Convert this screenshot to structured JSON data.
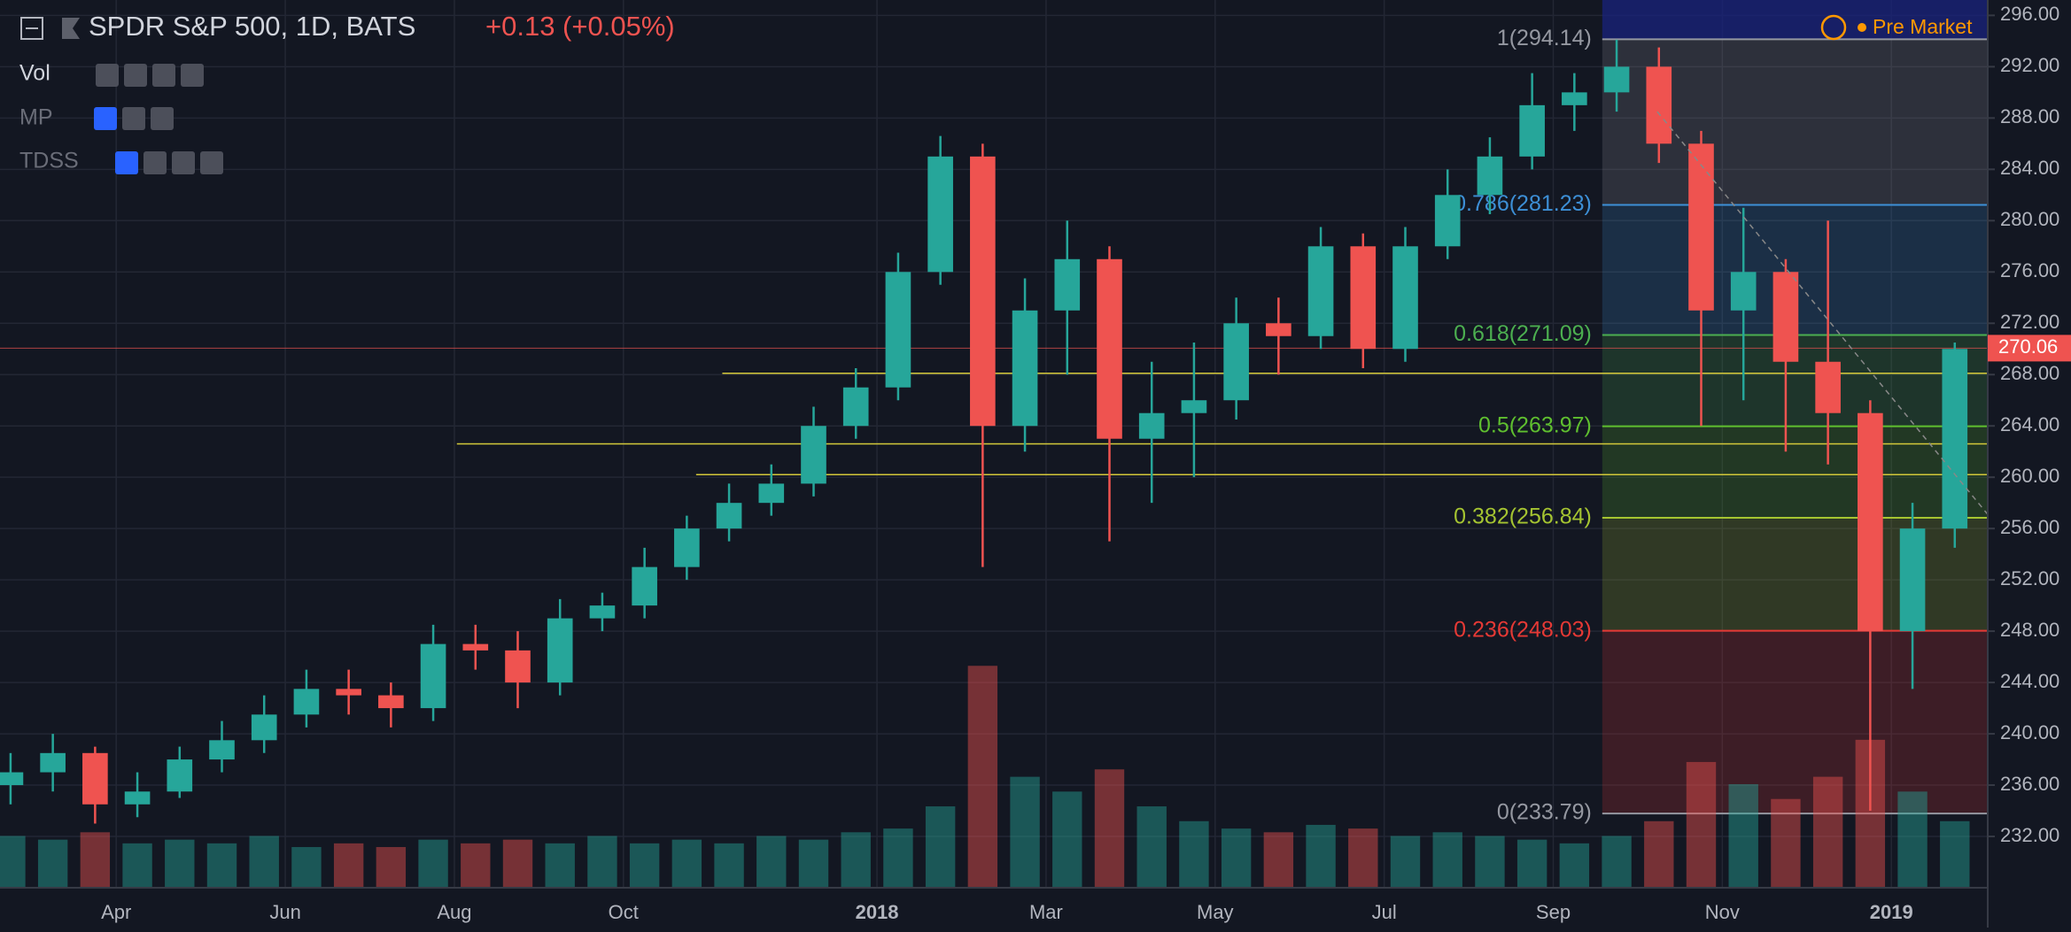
{
  "chart_data": {
    "type": "candlestick",
    "title": "SPDR S&P 500, 1D, BATS",
    "change": "+0.13 (+0.05%)",
    "indicators": [
      "Vol",
      "MP",
      "TDSS"
    ],
    "status": "Pre Market",
    "up_color": "#26a69a",
    "down_color": "#ef5350",
    "grid": true,
    "x": [
      1.75,
      2.25,
      2.75,
      3.25,
      3.75,
      4.25,
      4.75,
      5.25,
      5.75,
      6.25,
      6.75,
      7.25,
      7.75,
      8.25,
      8.75,
      9.25,
      9.75,
      10.25,
      10.75,
      11.25,
      11.75,
      12.25,
      12.75,
      13.25,
      13.75,
      14.25,
      14.75,
      15.25,
      15.75,
      16.25,
      16.75,
      17.25,
      17.75,
      18.25,
      18.75,
      19.25,
      19.75,
      20.25,
      20.75,
      21.25,
      21.75,
      22.25,
      22.75,
      23.25,
      23.75,
      24.25,
      24.75
    ],
    "open": [
      236,
      237,
      238.5,
      234.5,
      235.5,
      238,
      239.5,
      241.5,
      243.5,
      243,
      242,
      247,
      246.5,
      244,
      249,
      250,
      253,
      256,
      258,
      259.5,
      264,
      267,
      276,
      285,
      264,
      273,
      277,
      263,
      265,
      266,
      272,
      271,
      278,
      270,
      278,
      282,
      285,
      289,
      290,
      292,
      286,
      273,
      276,
      269,
      265,
      248,
      256
    ],
    "high": [
      238.5,
      240,
      239,
      237,
      239,
      241,
      243,
      245,
      245,
      244,
      248.5,
      248.5,
      248,
      250.5,
      251,
      254.5,
      257,
      259.5,
      261,
      265.5,
      268.5,
      277.5,
      286.6,
      286,
      275.5,
      280,
      278,
      269,
      270.5,
      274,
      274,
      279.5,
      279,
      279.5,
      284,
      286.5,
      291.5,
      291.5,
      294.1,
      293.5,
      287,
      281,
      277,
      280,
      266,
      258,
      270.5
    ],
    "low": [
      234.5,
      235.5,
      233,
      233.5,
      235,
      237,
      238.5,
      240.5,
      241.5,
      240.5,
      241,
      245,
      242,
      243,
      248,
      249,
      252,
      255,
      257,
      258.5,
      263,
      266,
      275,
      253,
      262,
      268,
      255,
      258,
      260,
      264.5,
      268,
      270,
      268.5,
      269,
      277,
      280.5,
      284,
      287,
      288.5,
      284.5,
      264,
      266,
      262,
      261,
      234,
      243.5,
      254.5
    ],
    "close": [
      237,
      238.5,
      234.5,
      235.5,
      238,
      239.5,
      241.5,
      243.5,
      243,
      242,
      247,
      246.5,
      244,
      249,
      250,
      253,
      256,
      258,
      259.5,
      264,
      267,
      276,
      285,
      264,
      273,
      277,
      263,
      265,
      266,
      272,
      271,
      278,
      270,
      278,
      282,
      285,
      289,
      290,
      292,
      286,
      273,
      276,
      269,
      265,
      248,
      256,
      270
    ],
    "volume": [
      70,
      65,
      75,
      60,
      65,
      60,
      70,
      55,
      60,
      55,
      65,
      60,
      65,
      60,
      70,
      60,
      65,
      60,
      70,
      65,
      75,
      80,
      110,
      300,
      150,
      130,
      160,
      110,
      90,
      80,
      75,
      85,
      80,
      70,
      75,
      70,
      65,
      60,
      70,
      90,
      170,
      140,
      120,
      150,
      200,
      130,
      90
    ],
    "xlim": [
      1.625,
      25.14
    ],
    "xticks": [
      {
        "value": 3,
        "label": "Apr"
      },
      {
        "value": 5,
        "label": "Jun"
      },
      {
        "value": 7,
        "label": "Aug"
      },
      {
        "value": 9,
        "label": "Oct"
      },
      {
        "value": 12,
        "label": "2018"
      },
      {
        "value": 14,
        "label": "Mar"
      },
      {
        "value": 16,
        "label": "May"
      },
      {
        "value": 18,
        "label": "Jul"
      },
      {
        "value": 20,
        "label": "Sep"
      },
      {
        "value": 22,
        "label": "Nov"
      },
      {
        "value": 24,
        "label": "2019"
      }
    ],
    "ylim": [
      228,
      297.2
    ],
    "yticks": [
      {
        "value": 232,
        "label": "232.00"
      },
      {
        "value": 236,
        "label": "236.00"
      },
      {
        "value": 240,
        "label": "240.00"
      },
      {
        "value": 244,
        "label": "244.00"
      },
      {
        "value": 248,
        "label": "248.00"
      },
      {
        "value": 252,
        "label": "252.00"
      },
      {
        "value": 256,
        "label": "256.00"
      },
      {
        "value": 260,
        "label": "260.00"
      },
      {
        "value": 264,
        "label": "264.00"
      },
      {
        "value": 268,
        "label": "268.00"
      },
      {
        "value": 272,
        "label": "272.00"
      },
      {
        "value": 276,
        "label": "276.00"
      },
      {
        "value": 280,
        "label": "280.00"
      },
      {
        "value": 284,
        "label": "284.00"
      },
      {
        "value": 288,
        "label": "288.00"
      },
      {
        "value": 292,
        "label": "292.00"
      },
      {
        "value": 296,
        "label": "296.00"
      }
    ],
    "y2lim": [
      0,
      1200
    ],
    "fib": {
      "start_x": 20.58,
      "levels": [
        {
          "value": 294.14,
          "label": "1(294.14)",
          "color": "#9598a1"
        },
        {
          "value": 281.23,
          "label": "0.786(281.23)",
          "color": "#3d8fd6"
        },
        {
          "value": 271.09,
          "label": "0.618(271.09)",
          "color": "#4caf50"
        },
        {
          "value": 263.97,
          "label": "0.5(263.97)",
          "color": "#5fbf2f"
        },
        {
          "value": 256.84,
          "label": "0.382(256.84)",
          "color": "#a5c431"
        },
        {
          "value": 248.03,
          "label": "0.236(248.03)",
          "color": "#e53935"
        },
        {
          "value": 233.79,
          "label": "0(233.79)",
          "color": "#9598a1"
        }
      ]
    },
    "hlines": [
      {
        "value": 268.1,
        "start_x": 10.17,
        "color": "#d4c93a"
      },
      {
        "value": 262.6,
        "start_x": 7.03,
        "color": "#d4c93a"
      },
      {
        "value": 260.2,
        "start_x": 9.86,
        "color": "#d4c93a"
      }
    ],
    "trendline": {
      "x": [
        21.23,
        25.14
      ],
      "y": [
        288.5,
        257.1
      ],
      "color": "#888888"
    },
    "last_price": 270.06,
    "last_color": "#ef5350"
  }
}
